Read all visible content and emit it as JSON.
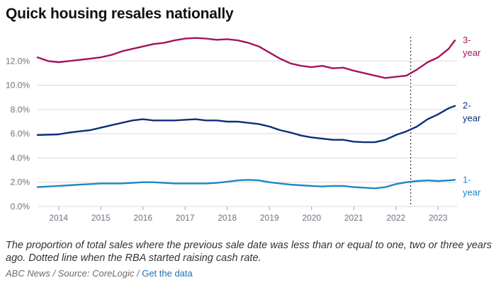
{
  "title": "Quick housing resales nationally",
  "caption": "The proportion of total sales where the previous sale date was less than or equal to one, two or three years ago. Dotted line when the RBA started raising cash rate.",
  "footer": {
    "source": "ABC News / Source: CoreLogic /",
    "link_label": "Get the data"
  },
  "colors": {
    "three_year": "#a3135f",
    "two_year": "#0b2f7a",
    "one_year": "#1d86c7",
    "grid": "#d9d9d9",
    "marker": "#333333"
  },
  "chart_data": {
    "type": "line",
    "title": "Quick housing resales nationally",
    "xlabel": "",
    "ylabel": "",
    "xlim": [
      2013.5,
      2023.45
    ],
    "ylim": [
      0,
      14
    ],
    "yticks": [
      0,
      2,
      4,
      6,
      8,
      10,
      12
    ],
    "ytick_labels": [
      "0.0%",
      "2.0%",
      "4.0%",
      "6.0%",
      "8.0%",
      "10.0%",
      "12.0%"
    ],
    "xticks": [
      2014,
      2015,
      2016,
      2017,
      2018,
      2019,
      2020,
      2021,
      2022,
      2023
    ],
    "xtick_labels": [
      "2014",
      "2015",
      "2016",
      "2017",
      "2018",
      "2019",
      "2020",
      "2021",
      "2022",
      "2023"
    ],
    "marker_x": 2022.35,
    "grid": true,
    "series": [
      {
        "name": "3-year",
        "label_lines": [
          "3-",
          "year"
        ],
        "color_key": "three_year",
        "points": [
          [
            2013.5,
            12.3
          ],
          [
            2013.75,
            12.0
          ],
          [
            2014.0,
            11.9
          ],
          [
            2014.25,
            12.0
          ],
          [
            2014.5,
            12.1
          ],
          [
            2014.75,
            12.2
          ],
          [
            2015.0,
            12.3
          ],
          [
            2015.25,
            12.5
          ],
          [
            2015.5,
            12.8
          ],
          [
            2015.75,
            13.0
          ],
          [
            2016.0,
            13.2
          ],
          [
            2016.25,
            13.4
          ],
          [
            2016.5,
            13.5
          ],
          [
            2016.75,
            13.7
          ],
          [
            2017.0,
            13.85
          ],
          [
            2017.25,
            13.9
          ],
          [
            2017.5,
            13.85
          ],
          [
            2017.75,
            13.75
          ],
          [
            2018.0,
            13.8
          ],
          [
            2018.25,
            13.7
          ],
          [
            2018.5,
            13.5
          ],
          [
            2018.75,
            13.2
          ],
          [
            2019.0,
            12.7
          ],
          [
            2019.25,
            12.2
          ],
          [
            2019.5,
            11.8
          ],
          [
            2019.75,
            11.6
          ],
          [
            2020.0,
            11.5
          ],
          [
            2020.25,
            11.6
          ],
          [
            2020.5,
            11.4
          ],
          [
            2020.75,
            11.45
          ],
          [
            2021.0,
            11.2
          ],
          [
            2021.25,
            11.0
          ],
          [
            2021.5,
            10.8
          ],
          [
            2021.75,
            10.6
          ],
          [
            2022.0,
            10.7
          ],
          [
            2022.25,
            10.8
          ],
          [
            2022.5,
            11.3
          ],
          [
            2022.75,
            11.9
          ],
          [
            2023.0,
            12.3
          ],
          [
            2023.25,
            13.0
          ],
          [
            2023.4,
            13.7
          ]
        ]
      },
      {
        "name": "2-year",
        "label_lines": [
          "2-",
          "year"
        ],
        "color_key": "two_year",
        "points": [
          [
            2013.5,
            5.9
          ],
          [
            2014.0,
            5.95
          ],
          [
            2014.25,
            6.1
          ],
          [
            2014.5,
            6.2
          ],
          [
            2014.75,
            6.3
          ],
          [
            2015.0,
            6.5
          ],
          [
            2015.25,
            6.7
          ],
          [
            2015.5,
            6.9
          ],
          [
            2015.75,
            7.1
          ],
          [
            2016.0,
            7.2
          ],
          [
            2016.25,
            7.1
          ],
          [
            2016.5,
            7.1
          ],
          [
            2016.75,
            7.1
          ],
          [
            2017.0,
            7.15
          ],
          [
            2017.25,
            7.2
          ],
          [
            2017.5,
            7.1
          ],
          [
            2017.75,
            7.1
          ],
          [
            2018.0,
            7.0
          ],
          [
            2018.25,
            7.0
          ],
          [
            2018.5,
            6.9
          ],
          [
            2018.75,
            6.8
          ],
          [
            2019.0,
            6.6
          ],
          [
            2019.25,
            6.3
          ],
          [
            2019.5,
            6.1
          ],
          [
            2019.75,
            5.85
          ],
          [
            2020.0,
            5.7
          ],
          [
            2020.25,
            5.6
          ],
          [
            2020.5,
            5.5
          ],
          [
            2020.75,
            5.5
          ],
          [
            2021.0,
            5.35
          ],
          [
            2021.25,
            5.3
          ],
          [
            2021.5,
            5.3
          ],
          [
            2021.75,
            5.5
          ],
          [
            2022.0,
            5.9
          ],
          [
            2022.25,
            6.2
          ],
          [
            2022.5,
            6.6
          ],
          [
            2022.75,
            7.2
          ],
          [
            2023.0,
            7.6
          ],
          [
            2023.25,
            8.1
          ],
          [
            2023.4,
            8.3
          ]
        ]
      },
      {
        "name": "1-year",
        "label_lines": [
          "1-",
          "year"
        ],
        "color_key": "one_year",
        "points": [
          [
            2013.5,
            1.6
          ],
          [
            2014.0,
            1.7
          ],
          [
            2014.25,
            1.75
          ],
          [
            2014.5,
            1.8
          ],
          [
            2014.75,
            1.85
          ],
          [
            2015.0,
            1.9
          ],
          [
            2015.25,
            1.9
          ],
          [
            2015.5,
            1.9
          ],
          [
            2015.75,
            1.95
          ],
          [
            2016.0,
            2.0
          ],
          [
            2016.25,
            2.0
          ],
          [
            2016.5,
            1.95
          ],
          [
            2016.75,
            1.9
          ],
          [
            2017.0,
            1.9
          ],
          [
            2017.25,
            1.9
          ],
          [
            2017.5,
            1.9
          ],
          [
            2017.75,
            1.95
          ],
          [
            2018.0,
            2.05
          ],
          [
            2018.25,
            2.15
          ],
          [
            2018.5,
            2.2
          ],
          [
            2018.75,
            2.15
          ],
          [
            2019.0,
            2.0
          ],
          [
            2019.25,
            1.9
          ],
          [
            2019.5,
            1.8
          ],
          [
            2019.75,
            1.75
          ],
          [
            2020.0,
            1.7
          ],
          [
            2020.25,
            1.65
          ],
          [
            2020.5,
            1.7
          ],
          [
            2020.75,
            1.7
          ],
          [
            2021.0,
            1.6
          ],
          [
            2021.25,
            1.55
          ],
          [
            2021.5,
            1.5
          ],
          [
            2021.75,
            1.6
          ],
          [
            2022.0,
            1.85
          ],
          [
            2022.25,
            2.0
          ],
          [
            2022.5,
            2.1
          ],
          [
            2022.75,
            2.15
          ],
          [
            2023.0,
            2.1
          ],
          [
            2023.25,
            2.15
          ],
          [
            2023.4,
            2.2
          ]
        ]
      }
    ]
  }
}
